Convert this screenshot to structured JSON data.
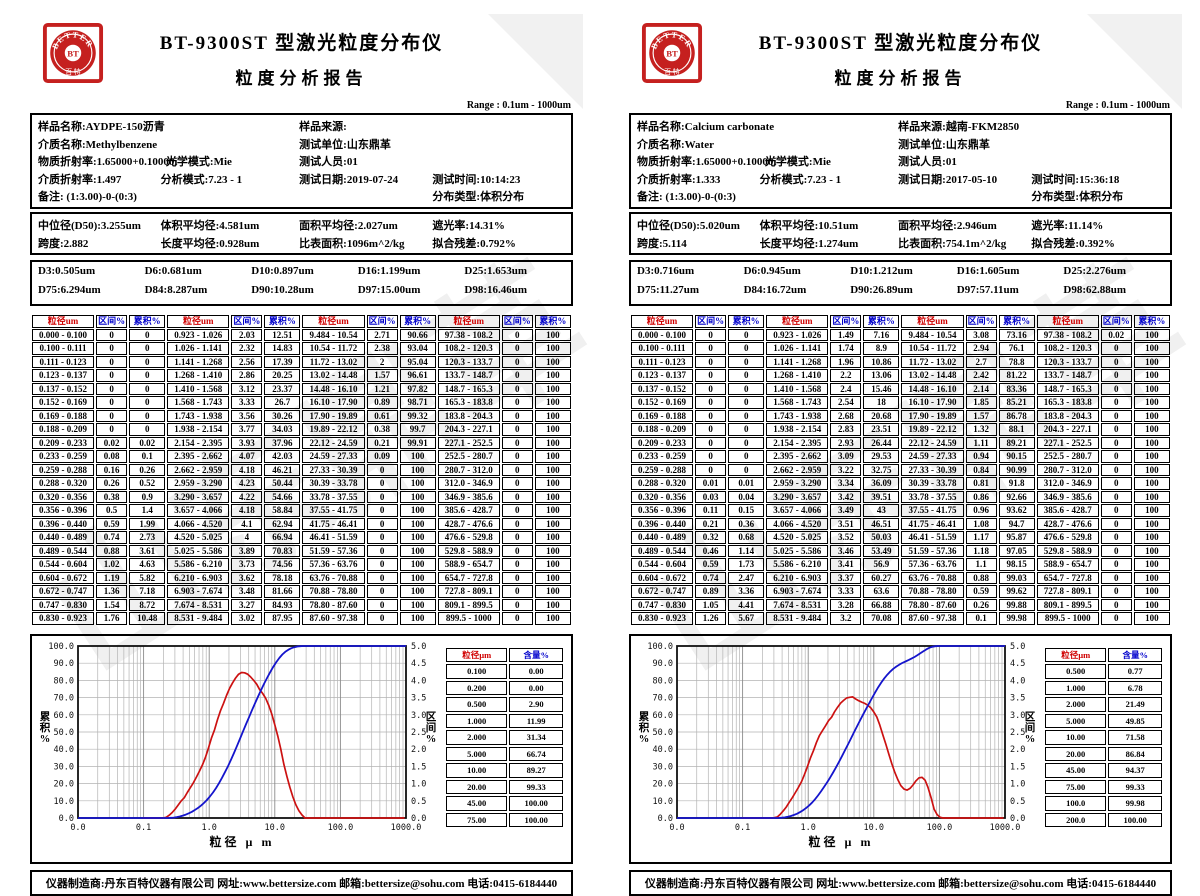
{
  "header": {
    "title1": "BT-9300ST 型激光粒度分布仪",
    "title2": "粒度分析报告",
    "range": "Range : 0.1um - 1000um"
  },
  "logo": {
    "arc": "BETTER",
    "center": "BT",
    "bottom": "百 特"
  },
  "watermark": {
    "text": "山东鼎革"
  },
  "footer": {
    "text": "仪器制造商:丹东百特仪器有限公司  网址:www.bettersize.com  邮箱:bettersize@sohu.com  电话:0415-6184440"
  },
  "table_headers": [
    "粒径um",
    "区间%",
    "累积%"
  ],
  "summary_headers": [
    "粒径µm",
    "含量%"
  ],
  "chart_axes": {
    "y_left_label": "累积%",
    "y_right_label": "区间%",
    "x_label": "粒径 µ m",
    "x_ticks": [
      "0.0",
      "0.1",
      "1.0",
      "10.0",
      "100.0",
      "1000.0"
    ],
    "y_left_range": [
      0,
      100
    ],
    "y_left_step": 10,
    "y_right_range": [
      0,
      5
    ],
    "y_right_step": 0.5
  },
  "colors": {
    "brand_red": "#c5201f",
    "header_red": "#d00000",
    "header_blue": "#0000cc",
    "curve_red": "#cc1111",
    "curve_blue": "#1414cc"
  },
  "bins": [
    "0.000 - 0.100",
    "0.100 - 0.111",
    "0.111 - 0.123",
    "0.123 - 0.137",
    "0.137 - 0.152",
    "0.152 - 0.169",
    "0.169 - 0.188",
    "0.188 - 0.209",
    "0.209 - 0.233",
    "0.233 - 0.259",
    "0.259 - 0.288",
    "0.288 - 0.320",
    "0.320 - 0.356",
    "0.356 - 0.396",
    "0.396 - 0.440",
    "0.440 - 0.489",
    "0.489 - 0.544",
    "0.544 - 0.604",
    "0.604 - 0.672",
    "0.672 - 0.747",
    "0.747 - 0.830",
    "0.830 - 0.923",
    "0.923 - 1.026",
    "1.026 - 1.141",
    "1.141 - 1.268",
    "1.268 - 1.410",
    "1.410 - 1.568",
    "1.568 - 1.743",
    "1.743 - 1.938",
    "1.938 - 2.154",
    "2.154 - 2.395",
    "2.395 - 2.662",
    "2.662 - 2.959",
    "2.959 - 3.290",
    "3.290 - 3.657",
    "3.657 - 4.066",
    "4.066 - 4.520",
    "4.520 - 5.025",
    "5.025 - 5.586",
    "5.586 - 6.210",
    "6.210 - 6.903",
    "6.903 - 7.674",
    "7.674 - 8.531",
    "8.531 - 9.484",
    "9.484 - 10.54",
    "10.54 - 11.72",
    "11.72 - 13.02",
    "13.02 - 14.48",
    "14.48 - 16.10",
    "16.10 - 17.90",
    "17.90 - 19.89",
    "19.89 - 22.12",
    "22.12 - 24.59",
    "24.59 - 27.33",
    "27.33 - 30.39",
    "30.39 - 33.78",
    "33.78 - 37.55",
    "37.55 - 41.75",
    "41.75 - 46.41",
    "46.41 - 51.59",
    "51.59 - 57.36",
    "57.36 - 63.76",
    "63.76 - 70.88",
    "70.88 - 78.80",
    "78.80 - 87.60",
    "87.60 - 97.38",
    "97.38 - 108.2",
    "108.2 - 120.3",
    "120.3 - 133.7",
    "133.7 - 148.7",
    "148.7 - 165.3",
    "165.3 - 183.8",
    "183.8 - 204.3",
    "204.3 - 227.1",
    "227.1 - 252.5",
    "252.5 - 280.7",
    "280.7 - 312.0",
    "312.0 - 346.9",
    "346.9 - 385.6",
    "385.6 - 428.7",
    "428.7 - 476.6",
    "476.6 - 529.8",
    "529.8 - 588.9",
    "588.9 - 654.7",
    "654.7 - 727.8",
    "727.8 - 809.1",
    "809.1 - 899.5",
    "899.5 - 1000"
  ],
  "reports": [
    {
      "info_rows": [
        [
          "样品名称:AYDPE-150沥青",
          "样品来源:"
        ],
        [
          "介质名称:Methylbenzene",
          "测试单位:山东鼎革"
        ],
        [
          "物质折射率:1.65000+0.10000i",
          "光学模式:Mie",
          "测试人员:01"
        ],
        [
          "介质折射率:1.497",
          "分析模式:7.23 - 1",
          "测试日期:2019-07-24",
          "测试时间:10:14:23"
        ],
        [
          "备注:  (1:3.00)-0-(0:3)",
          "分布类型:体积分布"
        ]
      ],
      "stats_rows": [
        [
          "中位径(D50):3.255um",
          "体积平均径:4.581um",
          "面积平均径:2.027um",
          "遮光率:14.31%"
        ],
        [
          "跨度:2.882",
          "长度平均径:0.928um",
          "比表面积:1096m^2/kg",
          "拟合残差:0.792%"
        ]
      ],
      "d_rows": [
        [
          "D3:0.505um",
          "D6:0.681um",
          "D10:0.897um",
          "D16:1.199um",
          "D25:1.653um"
        ],
        [
          "D75:6.294um",
          "D84:8.287um",
          "D90:10.28um",
          "D97:15.00um",
          "D98:16.46um"
        ]
      ],
      "interval": [
        "0",
        "0",
        "0",
        "0",
        "0",
        "0",
        "0",
        "0",
        "0.02",
        "0.08",
        "0.16",
        "0.26",
        "0.38",
        "0.5",
        "0.59",
        "0.74",
        "0.88",
        "1.02",
        "1.19",
        "1.36",
        "1.54",
        "1.76",
        "2.03",
        "2.32",
        "2.56",
        "2.86",
        "3.12",
        "3.33",
        "3.56",
        "3.77",
        "3.93",
        "4.07",
        "4.18",
        "4.23",
        "4.22",
        "4.18",
        "4.1",
        "4",
        "3.89",
        "3.73",
        "3.62",
        "3.48",
        "3.27",
        "3.02",
        "2.71",
        "2.38",
        "2",
        "1.57",
        "1.21",
        "0.89",
        "0.61",
        "0.38",
        "0.21",
        "0.09",
        "0",
        "0",
        "0",
        "0",
        "0",
        "0",
        "0",
        "0",
        "0",
        "0",
        "0",
        "0",
        "0",
        "0",
        "0",
        "0",
        "0",
        "0",
        "0",
        "0",
        "0",
        "0",
        "0",
        "0",
        "0",
        "0",
        "0",
        "0",
        "0",
        "0",
        "0",
        "0",
        "0",
        "0"
      ],
      "cumulative": [
        "0",
        "0",
        "0",
        "0",
        "0",
        "0",
        "0",
        "0",
        "0.02",
        "0.1",
        "0.26",
        "0.52",
        "0.9",
        "1.4",
        "1.99",
        "2.73",
        "3.61",
        "4.63",
        "5.82",
        "7.18",
        "8.72",
        "10.48",
        "12.51",
        "14.83",
        "17.39",
        "20.25",
        "23.37",
        "26.7",
        "30.26",
        "34.03",
        "37.96",
        "42.03",
        "46.21",
        "50.44",
        "54.66",
        "58.84",
        "62.94",
        "66.94",
        "70.83",
        "74.56",
        "78.18",
        "81.66",
        "84.93",
        "87.95",
        "90.66",
        "93.04",
        "95.04",
        "96.61",
        "97.82",
        "98.71",
        "99.32",
        "99.7",
        "99.91",
        "100",
        "100",
        "100",
        "100",
        "100",
        "100",
        "100",
        "100",
        "100",
        "100",
        "100",
        "100",
        "100",
        "100",
        "100",
        "100",
        "100",
        "100",
        "100",
        "100",
        "100",
        "100",
        "100",
        "100",
        "100",
        "100",
        "100",
        "100",
        "100",
        "100",
        "100",
        "100",
        "100",
        "100",
        "100"
      ],
      "summary_rows": [
        [
          "0.100",
          "0.00"
        ],
        [
          "0.200",
          "0.00"
        ],
        [
          "0.500",
          "2.90"
        ],
        [
          "1.000",
          "11.99"
        ],
        [
          "2.000",
          "31.34"
        ],
        [
          "5.000",
          "66.74"
        ],
        [
          "10.00",
          "89.27"
        ],
        [
          "20.00",
          "99.33"
        ],
        [
          "45.00",
          "100.00"
        ],
        [
          "75.00",
          "100.00"
        ]
      ],
      "chart_data": {
        "type": "line",
        "x_label": "粒径 µ m",
        "series": [
          {
            "name": "累积%",
            "axis": "left",
            "color": "#1414cc",
            "values_ref": "cumulative"
          },
          {
            "name": "区间%",
            "axis": "right",
            "color": "#cc1111",
            "values_ref": "interval"
          }
        ]
      }
    },
    {
      "info_rows": [
        [
          "样品名称:Calcium carbonate",
          "样品来源:越南-FKM2850"
        ],
        [
          "介质名称:Water",
          "测试单位:山东鼎革"
        ],
        [
          "物质折射率:1.65000+0.10000i",
          "光学模式:Mie",
          "测试人员:01"
        ],
        [
          "介质折射率:1.333",
          "分析模式:7.23 - 1",
          "测试日期:2017-05-10",
          "测试时间:15:36:18"
        ],
        [
          "备注:  (1:3.00)-0-(0:3)",
          "分布类型:体积分布"
        ]
      ],
      "stats_rows": [
        [
          "中位径(D50):5.020um",
          "体积平均径:10.51um",
          "面积平均径:2.946um",
          "遮光率:11.14%"
        ],
        [
          "跨度:5.114",
          "长度平均径:1.274um",
          "比表面积:754.1m^2/kg",
          "拟合残差:0.392%"
        ]
      ],
      "d_rows": [
        [
          "D3:0.716um",
          "D6:0.945um",
          "D10:1.212um",
          "D16:1.605um",
          "D25:2.276um"
        ],
        [
          "D75:11.27um",
          "D84:16.72um",
          "D90:26.89um",
          "D97:57.11um",
          "D98:62.88um"
        ]
      ],
      "interval": [
        "0",
        "0",
        "0",
        "0",
        "0",
        "0",
        "0",
        "0",
        "0",
        "0",
        "0",
        "0.01",
        "0.03",
        "0.11",
        "0.21",
        "0.32",
        "0.46",
        "0.59",
        "0.74",
        "0.89",
        "1.05",
        "1.26",
        "1.49",
        "1.74",
        "1.96",
        "2.2",
        "2.4",
        "2.54",
        "2.68",
        "2.83",
        "2.93",
        "3.09",
        "3.22",
        "3.34",
        "3.42",
        "3.49",
        "3.51",
        "3.52",
        "3.46",
        "3.41",
        "3.37",
        "3.33",
        "3.28",
        "3.2",
        "3.08",
        "2.94",
        "2.7",
        "2.42",
        "2.14",
        "1.85",
        "1.57",
        "1.32",
        "1.11",
        "0.94",
        "0.84",
        "0.81",
        "0.86",
        "0.96",
        "1.08",
        "1.17",
        "1.18",
        "1.1",
        "0.88",
        "0.59",
        "0.26",
        "0.1",
        "0.02",
        "0",
        "0",
        "0",
        "0",
        "0",
        "0",
        "0",
        "0",
        "0",
        "0",
        "0",
        "0",
        "0",
        "0",
        "0",
        "0",
        "0",
        "0",
        "0",
        "0",
        "0"
      ],
      "cumulative": [
        "0",
        "0",
        "0",
        "0",
        "0",
        "0",
        "0",
        "0",
        "0",
        "0",
        "0",
        "0.01",
        "0.04",
        "0.15",
        "0.36",
        "0.68",
        "1.14",
        "1.73",
        "2.47",
        "3.36",
        "4.41",
        "5.67",
        "7.16",
        "8.9",
        "10.86",
        "13.06",
        "15.46",
        "18",
        "20.68",
        "23.51",
        "26.44",
        "29.53",
        "32.75",
        "36.09",
        "39.51",
        "43",
        "46.51",
        "50.03",
        "53.49",
        "56.9",
        "60.27",
        "63.6",
        "66.88",
        "70.08",
        "73.16",
        "76.1",
        "78.8",
        "81.22",
        "83.36",
        "85.21",
        "86.78",
        "88.1",
        "89.21",
        "90.15",
        "90.99",
        "91.8",
        "92.66",
        "93.62",
        "94.7",
        "95.87",
        "97.05",
        "98.15",
        "99.03",
        "99.62",
        "99.88",
        "99.98",
        "100",
        "100",
        "100",
        "100",
        "100",
        "100",
        "100",
        "100",
        "100",
        "100",
        "100",
        "100",
        "100",
        "100",
        "100",
        "100",
        "100",
        "100",
        "100",
        "100",
        "100",
        "100"
      ],
      "summary_rows": [
        [
          "0.500",
          "0.77"
        ],
        [
          "1.000",
          "6.78"
        ],
        [
          "2.000",
          "21.49"
        ],
        [
          "5.000",
          "49.85"
        ],
        [
          "10.00",
          "71.58"
        ],
        [
          "20.00",
          "86.84"
        ],
        [
          "45.00",
          "94.37"
        ],
        [
          "75.00",
          "99.33"
        ],
        [
          "100.0",
          "99.98"
        ],
        [
          "200.0",
          "100.00"
        ]
      ],
      "chart_data": {
        "type": "line",
        "x_label": "粒径 µ m",
        "series": [
          {
            "name": "累积%",
            "axis": "left",
            "color": "#1414cc",
            "values_ref": "cumulative"
          },
          {
            "name": "区间%",
            "axis": "right",
            "color": "#cc1111",
            "values_ref": "interval"
          }
        ]
      }
    }
  ]
}
